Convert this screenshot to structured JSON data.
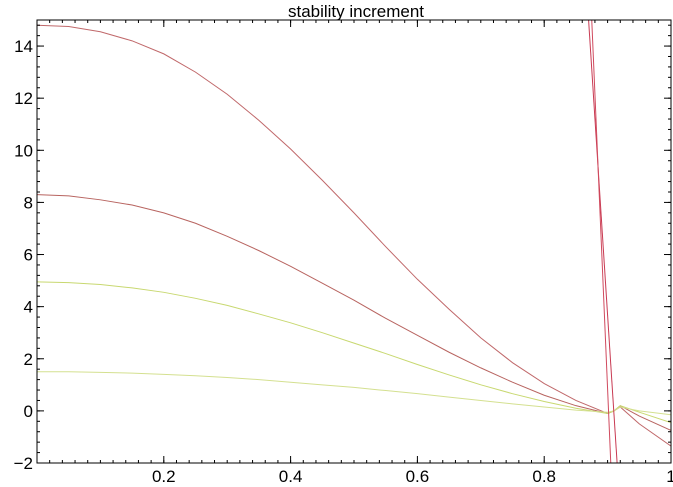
{
  "chart_data": {
    "type": "line",
    "title": "stability increment",
    "xlabel": "",
    "ylabel": "",
    "xlim": [
      0.0,
      1.0
    ],
    "ylim": [
      -2,
      15
    ],
    "x_ticks": [
      0.2,
      0.4,
      0.6,
      0.8,
      1
    ],
    "x_tick_labels": [
      "0.2",
      "0.4",
      "0.6",
      "0.8",
      "1"
    ],
    "y_ticks": [
      -2,
      0,
      2,
      4,
      6,
      8,
      10,
      12,
      14
    ],
    "y_tick_labels": [
      "−2",
      "0",
      "2",
      "4",
      "6",
      "8",
      "10",
      "12",
      "14"
    ],
    "grid": false,
    "series": [
      {
        "color": "#c0686a",
        "x": [
          0.0,
          0.05,
          0.1,
          0.15,
          0.2,
          0.25,
          0.3,
          0.35,
          0.4,
          0.45,
          0.5,
          0.55,
          0.6,
          0.65,
          0.7,
          0.75,
          0.8,
          0.85,
          0.9,
          0.91,
          0.92,
          0.95,
          1.0
        ],
        "y": [
          14.8,
          14.75,
          14.55,
          14.2,
          13.7,
          13.0,
          12.15,
          11.15,
          10.05,
          8.85,
          7.6,
          6.3,
          5.05,
          3.9,
          2.8,
          1.85,
          1.05,
          0.4,
          -0.1,
          0.0,
          0.15,
          -0.5,
          -1.35
        ]
      },
      {
        "color": "#b86460",
        "x": [
          0.0,
          0.05,
          0.1,
          0.15,
          0.2,
          0.25,
          0.3,
          0.35,
          0.4,
          0.45,
          0.5,
          0.55,
          0.6,
          0.65,
          0.7,
          0.75,
          0.8,
          0.85,
          0.9,
          0.91,
          0.92,
          0.95,
          1.0
        ],
        "y": [
          8.3,
          8.25,
          8.1,
          7.9,
          7.6,
          7.2,
          6.7,
          6.15,
          5.55,
          4.9,
          4.25,
          3.55,
          2.9,
          2.25,
          1.65,
          1.1,
          0.6,
          0.2,
          -0.1,
          0.0,
          0.2,
          -0.2,
          -0.75
        ]
      },
      {
        "color": "#c8d870",
        "x": [
          0.0,
          0.05,
          0.1,
          0.15,
          0.2,
          0.25,
          0.3,
          0.35,
          0.4,
          0.45,
          0.5,
          0.55,
          0.6,
          0.65,
          0.7,
          0.75,
          0.8,
          0.85,
          0.9,
          0.91,
          0.92,
          0.95,
          1.0
        ],
        "y": [
          4.95,
          4.92,
          4.85,
          4.72,
          4.55,
          4.32,
          4.05,
          3.72,
          3.38,
          3.0,
          2.6,
          2.2,
          1.78,
          1.38,
          1.0,
          0.66,
          0.36,
          0.1,
          -0.1,
          0.0,
          0.2,
          -0.05,
          -0.45
        ]
      },
      {
        "color": "#d4e090",
        "x": [
          0.0,
          0.05,
          0.1,
          0.15,
          0.2,
          0.25,
          0.3,
          0.35,
          0.4,
          0.45,
          0.5,
          0.55,
          0.6,
          0.65,
          0.7,
          0.75,
          0.8,
          0.85,
          0.9,
          0.91,
          0.92,
          0.95,
          1.0
        ],
        "y": [
          1.5,
          1.5,
          1.48,
          1.45,
          1.4,
          1.35,
          1.28,
          1.2,
          1.1,
          1.0,
          0.9,
          0.78,
          0.66,
          0.53,
          0.4,
          0.27,
          0.15,
          0.03,
          -0.05,
          0.0,
          0.15,
          0.0,
          -0.15
        ]
      },
      {
        "color": "#c83a52",
        "x": [
          0.87,
          0.915
        ],
        "y": [
          15.0,
          -2.0
        ]
      },
      {
        "color": "#d04a5e",
        "x": [
          0.875,
          0.905
        ],
        "y": [
          15.0,
          -2.0
        ]
      }
    ]
  }
}
